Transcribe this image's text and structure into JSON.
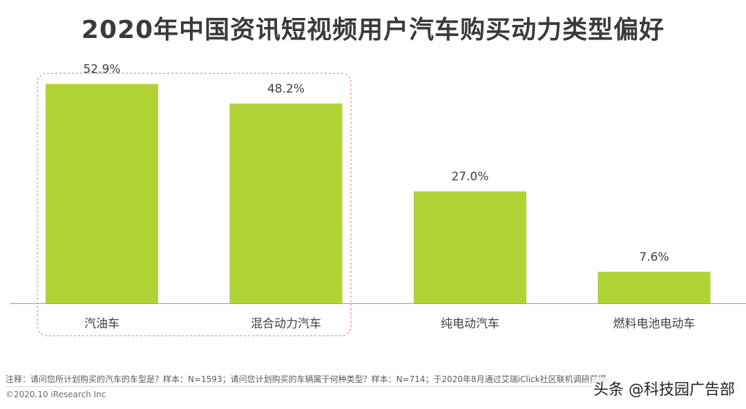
{
  "title": "2020年中国资讯短视频用户汽车购买动力类型偏好",
  "chart_data": {
    "type": "bar",
    "title": "2020年中国资讯短视频用户汽车购买动力类型偏好",
    "categories": [
      "汽油车",
      "混合动力汽车",
      "纯电动汽车",
      "燃料电池电动车"
    ],
    "values": [
      52.9,
      48.2,
      27.0,
      7.6
    ],
    "value_labels": [
      "52.9%",
      "48.2%",
      "27.0%",
      "7.6%"
    ],
    "unit": "%",
    "ylim": [
      0,
      60
    ],
    "grid": false,
    "legend": "none",
    "bar_color": "#b0d335",
    "highlight_box_color": "#f08a8a"
  },
  "footnote": "注释：请问您所计划购买的汽车的车型是？样本：N=1593；请问您计划购买的车辆属于何种类型？样本：N=714；于2020年8月通过艾瑞iClick社区联机调研获得。",
  "copyright": "©2020.10 iResearch Inc",
  "watermark": "头条 @科技园广告部"
}
